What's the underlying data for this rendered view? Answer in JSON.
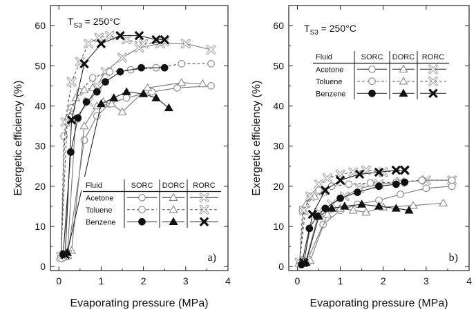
{
  "chart_data": [
    {
      "type": "line",
      "xlabel": "Evaporating pressure (MPa)",
      "ylabel": "Exergetic efficiency (%)",
      "xlim": [
        -0.2,
        4
      ],
      "ylim": [
        -1,
        65
      ],
      "xticks": [
        "0",
        "1",
        "2",
        "3",
        "4"
      ],
      "yticks": [
        "0",
        "10",
        "20",
        "30",
        "40",
        "50",
        "60"
      ],
      "annotation": {
        "main": "T",
        "sub": "S3",
        "rest": " = 250°C"
      },
      "panel_label": "a)",
      "legend": {
        "header": [
          "Fluid",
          "SORC",
          "DORC",
          "RORC"
        ],
        "fluids": [
          "Acetone",
          "Toluene",
          "Benzene"
        ]
      },
      "series": [
        {
          "fluid": "Acetone",
          "cycle": "SORC",
          "marker": "circle-open",
          "dash": "solid",
          "x": [
            0.05,
            0.2,
            0.6,
            0.9,
            1.2,
            1.6,
            2.2,
            2.8,
            3.6
          ],
          "y": [
            2,
            2.5,
            31.5,
            37.5,
            40.5,
            42,
            43.5,
            44.5,
            45
          ]
        },
        {
          "fluid": "Acetone",
          "cycle": "DORC",
          "marker": "triangle-open",
          "dash": "solid",
          "x": [
            0.1,
            0.3,
            0.6,
            0.9,
            1.05,
            1.25,
            1.5,
            2.1,
            2.9,
            3.4
          ],
          "y": [
            2.5,
            4,
            35,
            40,
            41,
            40.5,
            38.5,
            44.5,
            45.8,
            45.5
          ]
        },
        {
          "fluid": "Acetone",
          "cycle": "RORC",
          "marker": "x-open",
          "dash": "solid",
          "x": [
            0.05,
            0.2,
            0.4,
            0.7,
            0.9,
            1.1,
            1.5,
            1.9,
            2.4,
            3.0,
            3.6
          ],
          "y": [
            2.5,
            3,
            37,
            41,
            45,
            48.5,
            52,
            54.5,
            55.5,
            55.5,
            54
          ]
        },
        {
          "fluid": "Toluene",
          "cycle": "SORC",
          "marker": "circle-open",
          "dash": "dashed",
          "x": [
            0.05,
            0.12,
            0.3,
            0.5,
            0.8,
            1.2,
            1.7,
            2.3,
            2.9,
            3.6
          ],
          "y": [
            2,
            32.5,
            39.5,
            43.5,
            47,
            48.5,
            49,
            49.5,
            50.5,
            50.5
          ]
        },
        {
          "fluid": "Toluene",
          "cycle": "DORC",
          "marker": "triangle-open",
          "dash": "dashed",
          "x": [
            0.05,
            0.2,
            0.4,
            0.6,
            0.8
          ],
          "y": [
            3,
            37,
            42,
            44,
            44.5
          ]
        },
        {
          "fluid": "Toluene",
          "cycle": "RORC",
          "marker": "x-open",
          "dash": "dashed",
          "x": [
            0.05,
            0.15,
            0.3,
            0.5,
            0.7,
            0.95,
            1.2,
            1.6,
            2.0,
            2.5
          ],
          "y": [
            2.5,
            36,
            46,
            51,
            55.5,
            57,
            57.5,
            56.5,
            55.5,
            56
          ]
        },
        {
          "fluid": "Benzene",
          "cycle": "SORC",
          "marker": "circle-filled",
          "dash": "solid",
          "x": [
            0.1,
            0.28,
            0.45,
            0.65,
            0.9,
            1.1,
            1.45,
            1.95,
            2.5
          ],
          "y": [
            3,
            28.5,
            37,
            41,
            43.5,
            46,
            48.5,
            49.5,
            49.5
          ]
        },
        {
          "fluid": "Benzene",
          "cycle": "DORC",
          "marker": "triangle-filled",
          "dash": "solid",
          "x": [
            0.2,
            1.0,
            1.3,
            1.6,
            2.0,
            2.3,
            2.6
          ],
          "y": [
            3.5,
            40.5,
            42,
            43.5,
            43,
            42,
            39.5
          ]
        },
        {
          "fluid": "Benzene",
          "cycle": "RORC",
          "marker": "x-filled",
          "dash": "solid",
          "x": [
            0.15,
            0.3,
            0.6,
            1.0,
            1.45,
            1.9,
            2.3,
            2.5
          ],
          "y": [
            3,
            36.5,
            50.5,
            55.5,
            57.5,
            57.5,
            56.5,
            56.5
          ]
        }
      ]
    },
    {
      "type": "line",
      "xlabel": "Evaporating pressure (MPa)",
      "ylabel": "Exergetic efficiency (%)",
      "xlim": [
        -0.2,
        4
      ],
      "ylim": [
        -1,
        65
      ],
      "xticks": [
        "0",
        "1",
        "2",
        "3",
        "4"
      ],
      "yticks": [
        "0",
        "10",
        "20",
        "30",
        "40",
        "50",
        "60"
      ],
      "annotation": {
        "main": "T",
        "sub": "S3",
        "rest": " = 250°C"
      },
      "panel_label": "b)",
      "legend": {
        "header": [
          "Fluid",
          "SORC",
          "DORC",
          "RORC"
        ],
        "fluids": [
          "Acetone",
          "Toluene",
          "Benzene"
        ]
      },
      "series": [
        {
          "fluid": "Acetone",
          "cycle": "SORC",
          "marker": "circle-open",
          "dash": "solid",
          "x": [
            0.05,
            0.2,
            0.6,
            1.0,
            1.4,
            1.9,
            2.4,
            3.0,
            3.6
          ],
          "y": [
            0.5,
            0.8,
            10.5,
            14,
            15.5,
            16.5,
            18,
            19.5,
            20
          ]
        },
        {
          "fluid": "Acetone",
          "cycle": "DORC",
          "marker": "triangle-open",
          "dash": "solid",
          "x": [
            0.1,
            0.3,
            0.7,
            1.0,
            1.3,
            1.6,
            2.0,
            2.7,
            3.4
          ],
          "y": [
            0.7,
            1.5,
            13,
            14.5,
            14,
            13.5,
            14.8,
            15.2,
            15.8
          ]
        },
        {
          "fluid": "Acetone",
          "cycle": "RORC",
          "marker": "x-open",
          "dash": "solid",
          "x": [
            0.05,
            0.2,
            0.5,
            0.8,
            1.1,
            1.45,
            1.9,
            2.4,
            3.0,
            3.6
          ],
          "y": [
            1,
            1.5,
            13.5,
            15.5,
            17.5,
            19.5,
            20.5,
            21,
            21.5,
            21.5
          ]
        },
        {
          "fluid": "Toluene",
          "cycle": "SORC",
          "marker": "circle-open",
          "dash": "dashed",
          "x": [
            0.05,
            0.12,
            0.3,
            0.5,
            0.8,
            1.2,
            1.7,
            2.3,
            2.9,
            3.6
          ],
          "y": [
            0.5,
            14,
            17.5,
            19,
            20,
            20.5,
            20.8,
            21,
            21.5,
            21.5
          ]
        },
        {
          "fluid": "Toluene",
          "cycle": "DORC",
          "marker": "triangle-open",
          "dash": "dashed",
          "x": [
            0.05,
            0.2,
            0.4,
            0.6
          ],
          "y": [
            0.8,
            15.5,
            17.5,
            18.5
          ]
        },
        {
          "fluid": "Toluene",
          "cycle": "RORC",
          "marker": "x-open",
          "dash": "dashed",
          "x": [
            0.05,
            0.15,
            0.3,
            0.5,
            0.7,
            1.0,
            1.3,
            1.6,
            2.0,
            2.5
          ],
          "y": [
            1,
            14,
            17.5,
            20.5,
            22,
            23,
            23.5,
            24,
            23.5,
            24
          ]
        },
        {
          "fluid": "Benzene",
          "cycle": "SORC",
          "marker": "circle-filled",
          "dash": "solid",
          "x": [
            0.1,
            0.28,
            0.45,
            0.65,
            1.0,
            1.4,
            1.9,
            2.3,
            2.5
          ],
          "y": [
            0.5,
            9.5,
            12.5,
            14.5,
            17,
            18.5,
            20,
            20.5,
            21
          ]
        },
        {
          "fluid": "Benzene",
          "cycle": "DORC",
          "marker": "triangle-filled",
          "dash": "solid",
          "x": [
            0.2,
            0.5,
            0.8,
            1.1,
            1.5,
            1.9,
            2.3,
            2.6
          ],
          "y": [
            1,
            12.5,
            14.5,
            15,
            15.5,
            15,
            14.5,
            14
          ]
        },
        {
          "fluid": "Benzene",
          "cycle": "RORC",
          "marker": "x-filled",
          "dash": "solid",
          "x": [
            0.15,
            0.35,
            0.65,
            1.0,
            1.45,
            1.9,
            2.3,
            2.5
          ],
          "y": [
            1,
            13,
            19,
            21.5,
            23,
            23.5,
            24,
            24
          ]
        }
      ]
    }
  ]
}
